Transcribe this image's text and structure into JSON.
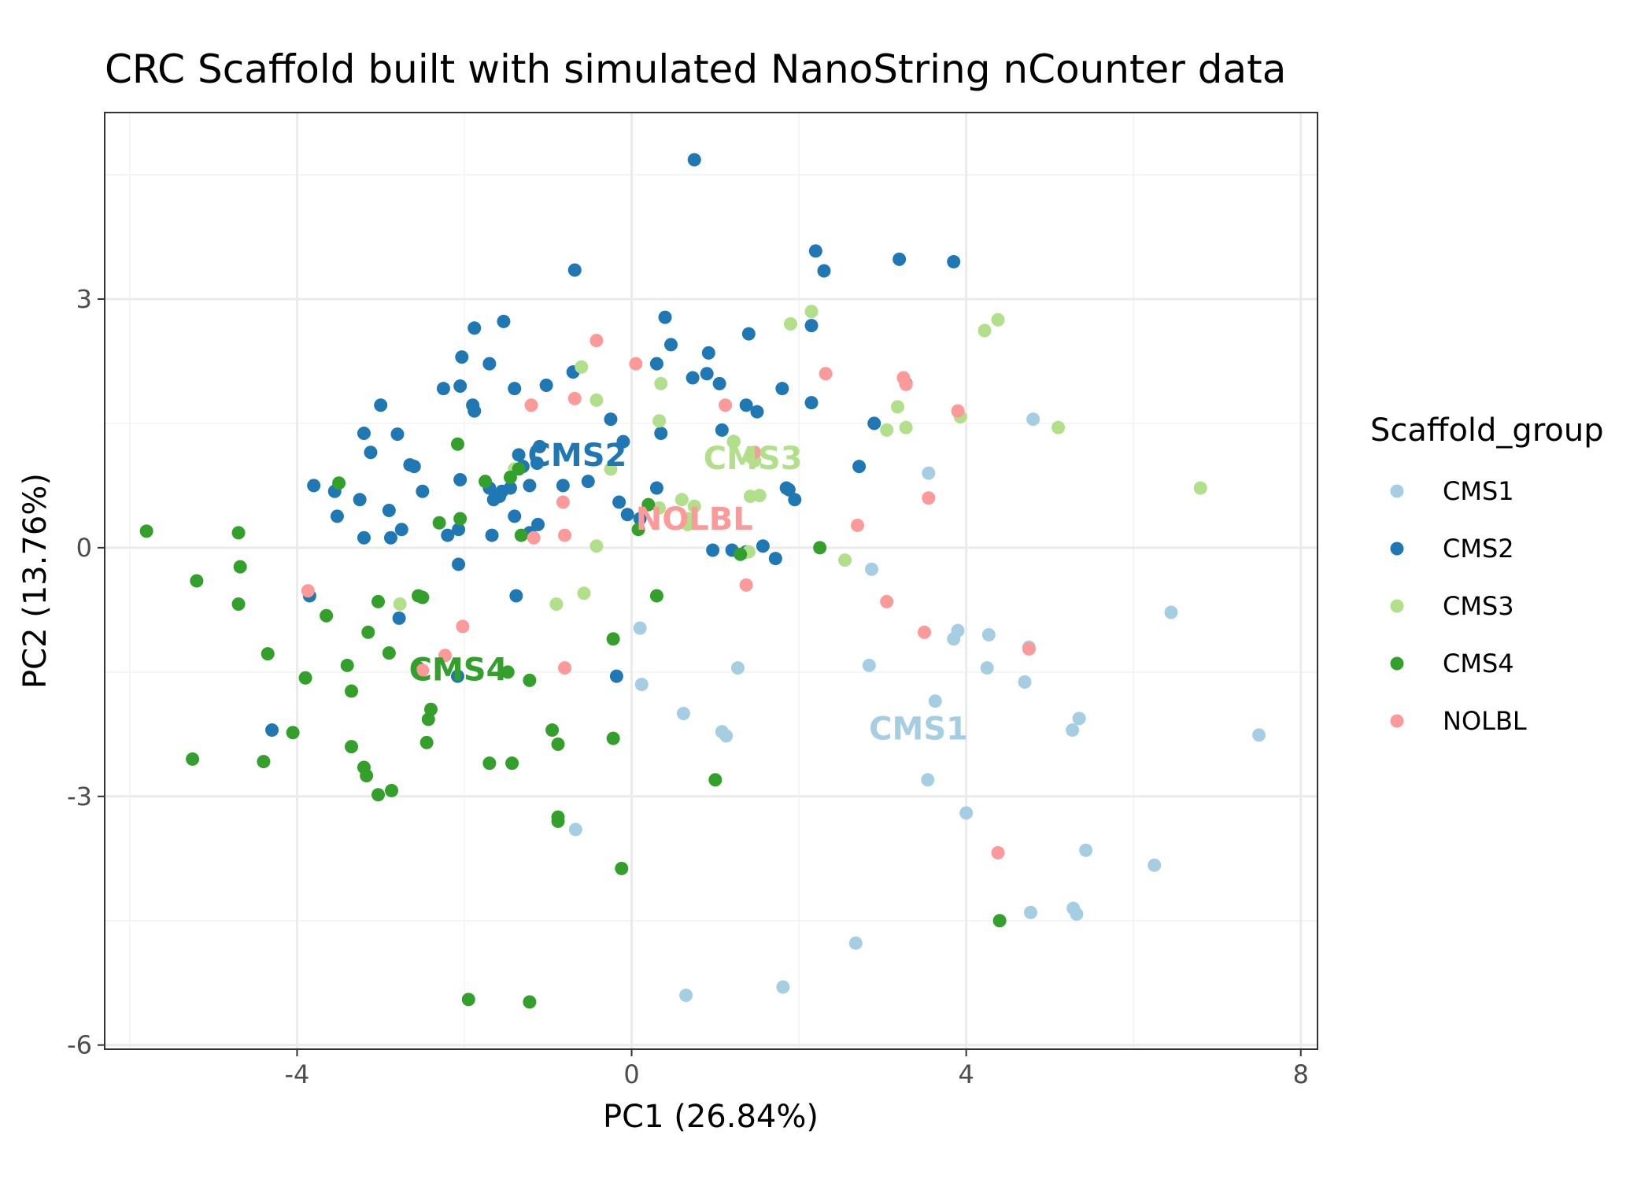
{
  "chart_data": {
    "type": "scatter",
    "title": "CRC Scaffold built with simulated NanoString nCounter data",
    "xlabel": "PC1 (26.84%)",
    "ylabel": "PC2 (13.76%)",
    "xlim": [
      -6.3,
      8.2
    ],
    "ylim": [
      -6.05,
      5.25
    ],
    "xticks": [
      -4,
      0,
      4,
      8
    ],
    "xtick_labels": [
      "-4",
      "0",
      "4",
      "8"
    ],
    "yticks": [
      3,
      0,
      -3,
      -6
    ],
    "ytick_labels": [
      "3",
      "0",
      "-3",
      "-6"
    ],
    "grid": true,
    "legend_title": "Scaffold_group",
    "legend_position": "right",
    "series": [
      {
        "name": "CMS1",
        "color": "#A6CEE3",
        "points": [
          [
            4.8,
            1.55
          ],
          [
            3.55,
            0.9
          ],
          [
            6.45,
            -0.78
          ],
          [
            2.87,
            -0.26
          ],
          [
            3.9,
            -1.0
          ],
          [
            3.85,
            -1.1
          ],
          [
            4.27,
            -1.05
          ],
          [
            4.75,
            -1.2
          ],
          [
            4.25,
            -1.45
          ],
          [
            4.7,
            -1.62
          ],
          [
            2.84,
            -1.42
          ],
          [
            1.27,
            -1.45
          ],
          [
            0.1,
            -0.97
          ],
          [
            0.12,
            -1.65
          ],
          [
            0.62,
            -2.0
          ],
          [
            1.08,
            -2.22
          ],
          [
            1.13,
            -2.27
          ],
          [
            3.63,
            -1.85
          ],
          [
            5.35,
            -2.06
          ],
          [
            5.27,
            -2.2
          ],
          [
            7.5,
            -2.26
          ],
          [
            3.54,
            -2.8
          ],
          [
            4.0,
            -3.2
          ],
          [
            5.43,
            -3.65
          ],
          [
            6.25,
            -3.83
          ],
          [
            4.77,
            -4.4
          ],
          [
            5.28,
            -4.35
          ],
          [
            5.32,
            -4.42
          ],
          [
            2.68,
            -4.77
          ],
          [
            1.81,
            -5.3
          ],
          [
            0.65,
            -5.4
          ],
          [
            -0.67,
            -3.4
          ]
        ]
      },
      {
        "name": "CMS2",
        "color": "#1F78B4",
        "points": [
          [
            0.75,
            4.68
          ],
          [
            -0.68,
            3.35
          ],
          [
            2.2,
            3.58
          ],
          [
            2.3,
            3.34
          ],
          [
            3.2,
            3.48
          ],
          [
            3.85,
            3.45
          ],
          [
            -1.88,
            2.65
          ],
          [
            -1.53,
            2.73
          ],
          [
            0.4,
            2.78
          ],
          [
            1.4,
            2.58
          ],
          [
            2.15,
            2.68
          ],
          [
            0.47,
            2.45
          ],
          [
            0.92,
            2.35
          ],
          [
            0.3,
            2.22
          ],
          [
            -2.03,
            2.3
          ],
          [
            -1.7,
            2.22
          ],
          [
            -0.7,
            2.12
          ],
          [
            0.73,
            2.05
          ],
          [
            0.9,
            2.1
          ],
          [
            1.05,
            1.98
          ],
          [
            -2.25,
            1.92
          ],
          [
            -2.05,
            1.95
          ],
          [
            -1.4,
            1.92
          ],
          [
            -1.02,
            1.96
          ],
          [
            3.28,
            1.98
          ],
          [
            1.8,
            1.92
          ],
          [
            2.15,
            1.75
          ],
          [
            -3.0,
            1.72
          ],
          [
            -1.9,
            1.72
          ],
          [
            -1.88,
            1.65
          ],
          [
            1.37,
            1.72
          ],
          [
            1.5,
            1.64
          ],
          [
            -0.25,
            1.55
          ],
          [
            2.9,
            1.5
          ],
          [
            -3.2,
            1.38
          ],
          [
            -2.8,
            1.37
          ],
          [
            0.35,
            1.38
          ],
          [
            -0.1,
            1.28
          ],
          [
            -1.1,
            1.22
          ],
          [
            1.08,
            1.42
          ],
          [
            1.22,
            1.28
          ],
          [
            -3.12,
            1.15
          ],
          [
            -1.35,
            1.12
          ],
          [
            -2.65,
            1.0
          ],
          [
            -2.6,
            0.98
          ],
          [
            -1.3,
            0.98
          ],
          [
            -1.13,
            1.02
          ],
          [
            2.72,
            0.98
          ],
          [
            -3.8,
            0.75
          ],
          [
            -3.55,
            0.68
          ],
          [
            -2.5,
            0.68
          ],
          [
            -2.05,
            0.82
          ],
          [
            -1.7,
            0.72
          ],
          [
            -1.55,
            0.68
          ],
          [
            -1.45,
            0.72
          ],
          [
            -1.22,
            0.75
          ],
          [
            -0.82,
            0.75
          ],
          [
            -0.52,
            0.8
          ],
          [
            0.3,
            0.72
          ],
          [
            1.85,
            0.72
          ],
          [
            1.88,
            0.7
          ],
          [
            -3.25,
            0.58
          ],
          [
            -1.65,
            0.58
          ],
          [
            -1.58,
            0.62
          ],
          [
            -0.15,
            0.55
          ],
          [
            1.95,
            0.58
          ],
          [
            -3.52,
            0.38
          ],
          [
            -2.9,
            0.45
          ],
          [
            -1.4,
            0.38
          ],
          [
            -0.05,
            0.4
          ],
          [
            0.1,
            0.35
          ],
          [
            -3.2,
            0.12
          ],
          [
            -2.88,
            0.12
          ],
          [
            -2.75,
            0.22
          ],
          [
            -2.2,
            0.15
          ],
          [
            -2.07,
            0.22
          ],
          [
            -1.12,
            0.28
          ],
          [
            -1.22,
            0.18
          ],
          [
            -1.67,
            0.15
          ],
          [
            0.97,
            -0.03
          ],
          [
            1.2,
            -0.03
          ],
          [
            1.37,
            -0.05
          ],
          [
            1.57,
            0.02
          ],
          [
            1.72,
            -0.13
          ],
          [
            -2.07,
            -0.2
          ],
          [
            -3.85,
            -0.58
          ],
          [
            -1.38,
            -0.58
          ],
          [
            -2.78,
            -0.85
          ],
          [
            -0.18,
            -1.55
          ],
          [
            -2.08,
            -1.55
          ],
          [
            -4.3,
            -2.2
          ]
        ]
      },
      {
        "name": "CMS3",
        "color": "#B2DF8A",
        "points": [
          [
            4.38,
            2.75
          ],
          [
            4.22,
            2.62
          ],
          [
            2.15,
            2.85
          ],
          [
            1.9,
            2.7
          ],
          [
            -0.6,
            2.18
          ],
          [
            0.35,
            1.98
          ],
          [
            -0.42,
            1.78
          ],
          [
            3.18,
            1.7
          ],
          [
            3.93,
            1.58
          ],
          [
            0.33,
            1.53
          ],
          [
            3.05,
            1.42
          ],
          [
            3.28,
            1.45
          ],
          [
            5.1,
            1.45
          ],
          [
            1.22,
            1.28
          ],
          [
            -0.25,
            0.95
          ],
          [
            1.47,
            1.05
          ],
          [
            1.42,
            1.1
          ],
          [
            -1.4,
            0.95
          ],
          [
            6.8,
            0.72
          ],
          [
            1.42,
            0.62
          ],
          [
            1.53,
            0.63
          ],
          [
            0.6,
            0.58
          ],
          [
            0.68,
            0.35
          ],
          [
            0.33,
            0.48
          ],
          [
            0.75,
            0.5
          ],
          [
            0.67,
            0.28
          ],
          [
            2.55,
            -0.15
          ],
          [
            1.4,
            -0.05
          ],
          [
            -0.42,
            0.02
          ],
          [
            -0.57,
            -0.55
          ],
          [
            -0.9,
            -0.68
          ],
          [
            -2.77,
            -0.68
          ]
        ]
      },
      {
        "name": "CMS4",
        "color": "#33A02C",
        "points": [
          [
            -5.8,
            0.2
          ],
          [
            -4.7,
            0.18
          ],
          [
            -4.68,
            -0.23
          ],
          [
            -5.2,
            -0.4
          ],
          [
            -4.7,
            -0.68
          ],
          [
            -2.08,
            1.25
          ],
          [
            -3.5,
            0.78
          ],
          [
            -1.75,
            0.8
          ],
          [
            -1.45,
            0.85
          ],
          [
            -1.35,
            0.95
          ],
          [
            0.2,
            0.52
          ],
          [
            0.08,
            0.22
          ],
          [
            -2.3,
            0.3
          ],
          [
            -2.05,
            0.35
          ],
          [
            -1.32,
            0.15
          ],
          [
            2.25,
            0.0
          ],
          [
            1.3,
            -0.08
          ],
          [
            -2.55,
            -0.58
          ],
          [
            -2.5,
            -0.6
          ],
          [
            -3.03,
            -0.65
          ],
          [
            0.3,
            -0.58
          ],
          [
            -3.65,
            -0.82
          ],
          [
            -3.15,
            -1.02
          ],
          [
            -0.22,
            -1.1
          ],
          [
            -4.35,
            -1.28
          ],
          [
            -2.9,
            -1.27
          ],
          [
            -3.4,
            -1.42
          ],
          [
            -3.9,
            -1.57
          ],
          [
            -3.35,
            -1.73
          ],
          [
            -2.55,
            -1.45
          ],
          [
            -1.48,
            -1.5
          ],
          [
            -1.22,
            -1.6
          ],
          [
            -2.4,
            -1.95
          ],
          [
            -2.43,
            -2.07
          ],
          [
            -4.05,
            -2.23
          ],
          [
            -0.95,
            -2.2
          ],
          [
            -0.22,
            -2.3
          ],
          [
            -0.88,
            -2.37
          ],
          [
            -2.45,
            -2.35
          ],
          [
            -3.35,
            -2.4
          ],
          [
            -5.25,
            -2.55
          ],
          [
            -4.4,
            -2.58
          ],
          [
            -1.7,
            -2.6
          ],
          [
            -1.43,
            -2.6
          ],
          [
            -3.2,
            -2.65
          ],
          [
            -3.17,
            -2.75
          ],
          [
            -2.87,
            -2.93
          ],
          [
            -3.03,
            -2.98
          ],
          [
            1.0,
            -2.8
          ],
          [
            -0.88,
            -3.25
          ],
          [
            -0.88,
            -3.3
          ],
          [
            -0.12,
            -3.87
          ],
          [
            4.4,
            -4.5
          ],
          [
            -1.95,
            -5.45
          ],
          [
            -1.22,
            -5.48
          ]
        ]
      },
      {
        "name": "NOLBL",
        "color": "#FB9A99",
        "points": [
          [
            -0.42,
            2.5
          ],
          [
            0.05,
            2.22
          ],
          [
            2.32,
            2.1
          ],
          [
            3.25,
            2.05
          ],
          [
            3.28,
            1.97
          ],
          [
            -0.68,
            1.8
          ],
          [
            -1.2,
            1.72
          ],
          [
            1.12,
            1.72
          ],
          [
            3.9,
            1.65
          ],
          [
            1.47,
            1.15
          ],
          [
            -0.82,
            0.55
          ],
          [
            3.55,
            0.6
          ],
          [
            2.7,
            0.27
          ],
          [
            -0.8,
            0.15
          ],
          [
            -1.17,
            0.12
          ],
          [
            1.37,
            -0.45
          ],
          [
            3.05,
            -0.65
          ],
          [
            3.5,
            -1.02
          ],
          [
            4.75,
            -1.22
          ],
          [
            -3.87,
            -0.52
          ],
          [
            -2.02,
            -0.95
          ],
          [
            -2.23,
            -1.3
          ],
          [
            -2.5,
            -1.48
          ],
          [
            -0.8,
            -1.45
          ],
          [
            4.38,
            -3.68
          ]
        ]
      }
    ],
    "annotations": [
      {
        "text": "CMS2",
        "x": -0.65,
        "y": 1.12,
        "color": "#1F78B4"
      },
      {
        "text": "CMS3",
        "x": 1.45,
        "y": 1.08,
        "color": "#B2DF8A"
      },
      {
        "text": "NOLBL",
        "x": 0.75,
        "y": 0.35,
        "color": "#FB9A99"
      },
      {
        "text": "CMS4",
        "x": -2.07,
        "y": -1.47,
        "color": "#33A02C"
      },
      {
        "text": "CMS1",
        "x": 3.43,
        "y": -2.18,
        "color": "#A6CEE3"
      }
    ]
  }
}
